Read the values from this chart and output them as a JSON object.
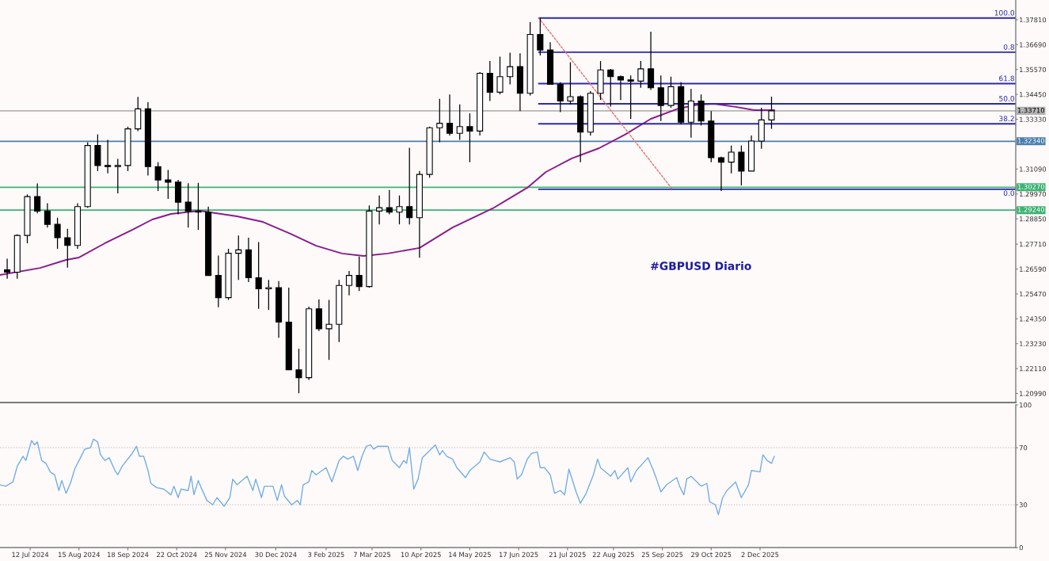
{
  "chart_data": [
    {
      "type": "candlestick",
      "x": [
        "2024-06-26",
        "2024-07-03",
        "2024-07-10",
        "2024-07-17",
        "2024-07-24",
        "2024-07-31",
        "2024-08-07",
        "2024-08-14",
        "2024-08-21",
        "2024-08-28",
        "2024-09-04",
        "2024-09-11",
        "2024-09-18",
        "2024-09-25",
        "2024-10-02",
        "2024-10-09",
        "2024-10-16",
        "2024-10-23",
        "2024-10-30",
        "2024-11-06",
        "2024-11-13",
        "2024-11-20",
        "2024-11-27",
        "2024-12-04",
        "2024-12-11",
        "2024-12-18",
        "2024-12-25",
        "2025-01-01",
        "2025-01-08",
        "2025-01-15",
        "2025-01-22",
        "2025-01-29",
        "2025-02-05",
        "2025-02-12",
        "2025-02-19",
        "2025-02-26",
        "2025-03-05",
        "2025-03-12",
        "2025-03-19",
        "2025-03-26",
        "2025-04-02",
        "2025-04-09",
        "2025-04-16",
        "2025-04-23",
        "2025-04-30",
        "2025-05-07",
        "2025-05-14",
        "2025-05-21",
        "2025-05-28",
        "2025-06-04",
        "2025-06-11",
        "2025-06-18",
        "2025-06-25",
        "2025-07-02",
        "2025-07-09",
        "2025-07-16",
        "2025-07-23",
        "2025-07-30",
        "2025-08-06",
        "2025-08-13",
        "2025-08-20",
        "2025-08-27",
        "2025-09-03",
        "2025-09-10",
        "2025-09-17",
        "2025-09-24",
        "2025-10-01",
        "2025-10-08",
        "2025-10-15",
        "2025-10-22",
        "2025-10-29",
        "2025-11-05",
        "2025-11-12",
        "2025-11-19",
        "2025-11-26",
        "2025-12-03",
        "2025-12-10"
      ],
      "ohlc": [
        [
          1.2655,
          1.2705,
          1.2615,
          1.2645
        ],
        [
          1.2645,
          1.2815,
          1.2615,
          1.281
        ],
        [
          1.281,
          1.2995,
          1.2775,
          1.2985
        ],
        [
          1.2985,
          1.3044,
          1.291,
          1.292
        ],
        [
          1.292,
          1.2955,
          1.2845,
          1.286
        ],
        [
          1.286,
          1.289,
          1.275,
          1.28
        ],
        [
          1.28,
          1.284,
          1.2665,
          1.2765
        ],
        [
          1.2765,
          1.2955,
          1.275,
          1.294
        ],
        [
          1.294,
          1.323,
          1.2935,
          1.3215
        ],
        [
          1.3215,
          1.3265,
          1.31,
          1.3125
        ],
        [
          1.3125,
          1.324,
          1.309,
          1.312
        ],
        [
          1.312,
          1.3155,
          1.3,
          1.3125
        ],
        [
          1.3125,
          1.33,
          1.31,
          1.329
        ],
        [
          1.329,
          1.3434,
          1.328,
          1.338
        ],
        [
          1.338,
          1.341,
          1.308,
          1.312
        ],
        [
          1.312,
          1.314,
          1.301,
          1.306
        ],
        [
          1.306,
          1.3105,
          1.2975,
          1.305
        ],
        [
          1.305,
          1.306,
          1.2905,
          1.296
        ],
        [
          1.296,
          1.3045,
          1.2845,
          1.292
        ],
        [
          1.292,
          1.3047,
          1.2835,
          1.2915
        ],
        [
          1.2915,
          1.294,
          1.263,
          1.263
        ],
        [
          1.263,
          1.272,
          1.2487,
          1.253
        ],
        [
          1.253,
          1.275,
          1.252,
          1.273
        ],
        [
          1.273,
          1.281,
          1.261,
          1.2745
        ],
        [
          1.2745,
          1.28,
          1.26,
          1.262
        ],
        [
          1.262,
          1.278,
          1.248,
          1.257
        ],
        [
          1.257,
          1.261,
          1.2475,
          1.2575
        ],
        [
          1.2575,
          1.2605,
          1.235,
          1.242
        ],
        [
          1.242,
          1.2575,
          1.2205,
          1.2205
        ],
        [
          1.2205,
          1.23,
          1.21,
          1.217
        ],
        [
          1.217,
          1.249,
          1.216,
          1.248
        ],
        [
          1.248,
          1.2523,
          1.238,
          1.239
        ],
        [
          1.239,
          1.252,
          1.225,
          1.241
        ],
        [
          1.241,
          1.261,
          1.233,
          1.2585
        ],
        [
          1.2585,
          1.265,
          1.254,
          1.263
        ],
        [
          1.263,
          1.2715,
          1.256,
          1.258
        ],
        [
          1.258,
          1.2945,
          1.2575,
          1.292
        ],
        [
          1.292,
          1.299,
          1.286,
          1.2935
        ],
        [
          1.2935,
          1.3015,
          1.2905,
          1.2915
        ],
        [
          1.2915,
          1.299,
          1.286,
          1.294
        ],
        [
          1.294,
          1.3205,
          1.286,
          1.289
        ],
        [
          1.289,
          1.31,
          1.271,
          1.3085
        ],
        [
          1.3085,
          1.33,
          1.307,
          1.3295
        ],
        [
          1.3295,
          1.3425,
          1.323,
          1.3315
        ],
        [
          1.3315,
          1.3445,
          1.326,
          1.327
        ],
        [
          1.327,
          1.34,
          1.324,
          1.33
        ],
        [
          1.33,
          1.336,
          1.314,
          1.328
        ],
        [
          1.328,
          1.3545,
          1.326,
          1.354
        ],
        [
          1.354,
          1.3595,
          1.3415,
          1.3455
        ],
        [
          1.3455,
          1.3615,
          1.3445,
          1.3525
        ],
        [
          1.3525,
          1.3633,
          1.349,
          1.357
        ],
        [
          1.357,
          1.363,
          1.337,
          1.345
        ],
        [
          1.345,
          1.377,
          1.344,
          1.3715
        ],
        [
          1.3715,
          1.3789,
          1.362,
          1.3645
        ],
        [
          1.3645,
          1.368,
          1.349,
          1.349
        ],
        [
          1.349,
          1.35,
          1.3365,
          1.3415
        ],
        [
          1.3415,
          1.359,
          1.34,
          1.3435
        ],
        [
          1.3435,
          1.344,
          1.314,
          1.3275
        ],
        [
          1.3275,
          1.346,
          1.326,
          1.345
        ],
        [
          1.345,
          1.3595,
          1.342,
          1.3555
        ],
        [
          1.3555,
          1.356,
          1.339,
          1.3525
        ],
        [
          1.3525,
          1.353,
          1.342,
          1.351
        ],
        [
          1.351,
          1.353,
          1.3335,
          1.3505
        ],
        [
          1.3505,
          1.3595,
          1.3475,
          1.356
        ],
        [
          1.356,
          1.3727,
          1.3465,
          1.3475
        ],
        [
          1.3475,
          1.353,
          1.3325,
          1.3395
        ],
        [
          1.3395,
          1.3525,
          1.3385,
          1.348
        ],
        [
          1.348,
          1.35,
          1.331,
          1.332
        ],
        [
          1.332,
          1.347,
          1.325,
          1.3415
        ],
        [
          1.3415,
          1.3445,
          1.3305,
          1.3325
        ],
        [
          1.3325,
          1.337,
          1.314,
          1.316
        ],
        [
          1.316,
          1.3165,
          1.301,
          1.314
        ],
        [
          1.314,
          1.3215,
          1.309,
          1.3185
        ],
        [
          1.3185,
          1.3215,
          1.3035,
          1.31
        ],
        [
          1.31,
          1.326,
          1.31,
          1.3235
        ],
        [
          1.3235,
          1.3385,
          1.32,
          1.333
        ],
        [
          1.333,
          1.3435,
          1.329,
          1.3371
        ]
      ],
      "series": [
        {
          "type": "line",
          "color": "#8b1a8b",
          "x": [
            "2024-06-21",
            "2024-07-19",
            "2024-08-06",
            "2024-08-15",
            "2024-09-02",
            "2024-09-21",
            "2024-10-05",
            "2024-10-18",
            "2024-11-07",
            "2024-12-03",
            "2024-12-21",
            "2025-01-09",
            "2025-01-27",
            "2025-02-14",
            "2025-03-01",
            "2025-03-18",
            "2025-04-09",
            "2025-05-02",
            "2025-05-30",
            "2025-06-23",
            "2025-07-06",
            "2025-07-24",
            "2025-08-12",
            "2025-08-30",
            "2025-09-17",
            "2025-10-06",
            "2025-10-20",
            "2025-10-31",
            "2025-11-15",
            "2025-11-28",
            "2025-12-12"
          ],
          "values": [
            1.2632,
            1.2664,
            1.27,
            1.2711,
            1.2775,
            1.2835,
            1.2882,
            1.2907,
            1.2921,
            1.2896,
            1.2871,
            1.2818,
            1.2764,
            1.2729,
            1.2718,
            1.2729,
            1.2754,
            1.2846,
            1.2932,
            1.3025,
            1.3096,
            1.3157,
            1.3203,
            1.3264,
            1.3335,
            1.3381,
            1.3399,
            1.3403,
            1.3389,
            1.3374,
            1.3374
          ]
        },
        {
          "type": "line",
          "name": "100.0",
          "color": "#2a2ab0",
          "x": [
            "2025-07-01",
            "2026-05-29"
          ],
          "values": [
            1.3789,
            1.3789
          ]
        },
        {
          "type": "line",
          "name": "0.8",
          "color": "#2a2ab0",
          "x": [
            "2025-07-01",
            "2026-05-29"
          ],
          "values": [
            1.3635,
            1.3635
          ]
        },
        {
          "type": "line",
          "name": "61.8",
          "color": "#2a2ab0",
          "x": [
            "2025-07-01",
            "2026-05-29"
          ],
          "values": [
            1.3494,
            1.3494
          ]
        },
        {
          "type": "line",
          "name": "50.0",
          "color": "#2a2ab0",
          "x": [
            "2025-07-01",
            "2026-05-29"
          ],
          "values": [
            1.3403,
            1.3403
          ]
        },
        {
          "type": "line",
          "name": "38.2",
          "color": "#2a2ab0",
          "x": [
            "2025-07-01",
            "2026-05-29"
          ],
          "values": [
            1.3313,
            1.3313
          ]
        },
        {
          "type": "line",
          "name": "0.0",
          "color": "#2a2ab0",
          "x": [
            "2025-07-01",
            "2026-05-29"
          ],
          "values": [
            1.3018,
            1.3018
          ]
        },
        {
          "type": "line",
          "color": "#e87a7a",
          "line_style": "dotted",
          "x": [
            "2025-07-01",
            "2025-10-02"
          ],
          "values": [
            1.3789,
            1.3018
          ]
        }
      ],
      "xlim": [
        "2024-06-21",
        "2026-05-29"
      ],
      "ylim": [
        1.2058,
        1.387
      ],
      "yticks": [
        {
          "value": 1.3781,
          "label": "1.37810"
        },
        {
          "value": 1.3669,
          "label": "1.36690"
        },
        {
          "value": 1.3557,
          "label": "1.35570"
        },
        {
          "value": 1.3445,
          "label": "1.34450"
        },
        {
          "value": 1.3333,
          "label": "1.33330"
        },
        {
          "value": 1.3221,
          "label": null
        },
        {
          "value": 1.3109,
          "label": "1.31090"
        },
        {
          "value": 1.2997,
          "label": "1.29970"
        },
        {
          "value": 1.2885,
          "label": "1.28850"
        },
        {
          "value": 1.2771,
          "label": "1.27710"
        },
        {
          "value": 1.2659,
          "label": "1.26590"
        },
        {
          "value": 1.2547,
          "label": "1.25470"
        },
        {
          "value": 1.2435,
          "label": "1.24350"
        },
        {
          "value": 1.2323,
          "label": "1.23230"
        },
        {
          "value": 1.2211,
          "label": "1.22110"
        },
        {
          "value": 1.2099,
          "label": "1.20990"
        }
      ],
      "tick_labels": "y",
      "ref_lines": [
        {
          "axis": "y",
          "value": 1.3371,
          "label": "1.33710",
          "color": "#b4b4b4"
        },
        {
          "axis": "y",
          "value": 1.3234,
          "label": "1.32340",
          "color": "#4a7fb0"
        },
        {
          "axis": "y",
          "value": 1.3027,
          "label": "1.30270",
          "color": "#3cb371"
        },
        {
          "axis": "y",
          "value": 1.2924,
          "label": "1.29240",
          "color": "#3cb371"
        }
      ],
      "annotations": [
        "#GBPUSD Diario"
      ]
    },
    {
      "type": "line",
      "color": "#72aee6",
      "x": [
        "2024-06-21",
        "2024-06-25",
        "2024-06-30",
        "2024-07-03",
        "2024-07-07",
        "2024-07-09",
        "2024-07-13",
        "2024-07-15",
        "2024-07-17",
        "2024-07-20",
        "2024-07-23",
        "2024-07-26",
        "2024-07-29",
        "2024-08-01",
        "2024-08-03",
        "2024-08-06",
        "2024-08-09",
        "2024-08-12",
        "2024-08-16",
        "2024-08-19",
        "2024-08-23",
        "2024-08-25",
        "2024-08-28",
        "2024-08-30",
        "2024-09-02",
        "2024-09-05",
        "2024-09-09",
        "2024-09-11",
        "2024-09-14",
        "2024-09-21",
        "2024-09-24",
        "2024-09-26",
        "2024-09-29",
        "2024-10-02",
        "2024-10-04",
        "2024-10-08",
        "2024-10-13",
        "2024-10-18",
        "2024-10-20",
        "2024-10-23",
        "2024-10-25",
        "2024-10-30",
        "2024-11-01",
        "2024-11-03",
        "2024-11-06",
        "2024-11-08",
        "2024-11-12",
        "2024-11-16",
        "2024-11-19",
        "2024-11-24",
        "2024-11-28",
        "2024-11-30",
        "2024-12-03",
        "2024-12-10",
        "2024-12-14",
        "2024-12-16",
        "2024-12-20",
        "2024-12-22",
        "2024-12-28",
        "2024-12-31",
        "2025-01-03",
        "2025-01-05",
        "2025-01-10",
        "2025-01-14",
        "2025-01-16",
        "2025-01-18",
        "2025-01-22",
        "2025-01-24",
        "2025-01-27",
        "2025-02-03",
        "2025-02-07",
        "2025-02-12",
        "2025-02-15",
        "2025-02-18",
        "2025-02-22",
        "2025-02-25",
        "2025-02-28",
        "2025-03-03",
        "2025-03-06",
        "2025-03-08",
        "2025-03-11",
        "2025-03-18",
        "2025-03-21",
        "2025-03-26",
        "2025-03-29",
        "2025-03-31",
        "2025-04-02",
        "2025-04-05",
        "2025-04-08",
        "2025-04-11",
        "2025-04-15",
        "2025-04-20",
        "2025-04-23",
        "2025-04-25",
        "2025-04-28",
        "2025-05-02",
        "2025-05-05",
        "2025-05-11",
        "2025-05-14",
        "2025-05-21",
        "2025-05-24",
        "2025-05-28",
        "2025-06-04",
        "2025-06-11",
        "2025-06-14",
        "2025-06-16",
        "2025-06-19",
        "2025-06-23",
        "2025-06-26",
        "2025-06-30",
        "2025-07-02",
        "2025-07-05",
        "2025-07-09",
        "2025-07-12",
        "2025-07-16",
        "2025-07-19",
        "2025-07-22",
        "2025-07-27",
        "2025-07-30",
        "2025-08-03",
        "2025-08-08",
        "2025-08-11",
        "2025-08-13",
        "2025-08-20",
        "2025-08-23",
        "2025-08-25",
        "2025-09-01",
        "2025-09-03",
        "2025-09-07",
        "2025-09-15",
        "2025-09-18",
        "2025-09-21",
        "2025-09-24",
        "2025-09-28",
        "2025-10-05",
        "2025-10-07",
        "2025-10-10",
        "2025-10-12",
        "2025-10-15",
        "2025-10-22",
        "2025-10-26",
        "2025-10-28",
        "2025-11-01",
        "2025-11-03",
        "2025-11-06",
        "2025-11-09",
        "2025-11-15",
        "2025-11-19",
        "2025-11-24",
        "2025-11-26",
        "2025-12-02",
        "2025-12-04",
        "2025-12-07",
        "2025-12-10",
        "2025-12-12"
      ],
      "values": [
        44,
        43,
        46,
        57,
        64,
        61,
        75,
        72,
        74,
        61,
        59,
        53,
        51,
        40,
        47,
        38,
        45,
        55,
        63,
        69,
        70,
        76,
        74,
        65,
        61,
        63,
        54,
        51,
        57,
        66,
        71,
        64,
        64,
        54,
        45,
        42,
        41,
        37,
        43,
        35,
        41,
        40,
        50,
        37,
        47,
        42,
        33,
        30,
        35,
        29,
        35,
        48,
        44,
        50,
        40,
        48,
        35,
        43,
        43,
        33,
        44,
        36,
        30,
        33,
        30,
        44,
        46,
        54,
        51,
        56,
        46,
        61,
        64,
        62,
        64,
        54,
        64,
        71,
        72,
        69,
        71,
        71,
        61,
        56,
        61,
        59,
        70,
        41,
        48,
        63,
        67,
        72,
        65,
        68,
        64,
        62,
        56,
        49,
        54,
        60,
        67,
        62,
        60,
        63,
        60,
        48,
        51,
        62,
        66,
        67,
        56,
        56,
        51,
        38,
        40,
        37,
        55,
        39,
        31,
        38,
        51,
        62,
        56,
        50,
        54,
        48,
        56,
        46,
        54,
        63,
        56,
        48,
        39,
        44,
        49,
        43,
        37,
        48,
        50,
        43,
        45,
        32,
        30,
        23,
        35,
        40,
        46,
        35,
        44,
        54,
        53,
        65,
        61,
        59,
        64
      ],
      "xlim": [
        "2024-06-21",
        "2026-05-29"
      ],
      "ylim": [
        0,
        100
      ],
      "yticks": [
        0,
        30,
        70,
        100
      ],
      "xticks": [
        {
          "value": "2024-07-12",
          "label": "12 Jul 2024"
        },
        {
          "value": "2024-08-15",
          "label": "15 Aug 2024"
        },
        {
          "value": "2024-09-18",
          "label": "18 Sep 2024"
        },
        {
          "value": "2024-10-22",
          "label": "22 Oct 2024"
        },
        {
          "value": "2024-11-25",
          "label": "25 Nov 2024"
        },
        {
          "value": "2024-12-30",
          "label": "30 Dec 2024"
        },
        {
          "value": "2025-02-03",
          "label": "3 Feb 2025"
        },
        {
          "value": "2025-03-07",
          "label": "7 Mar 2025"
        },
        {
          "value": "2025-04-10",
          "label": "10 Apr 2025"
        },
        {
          "value": "2025-05-14",
          "label": "14 May 2025"
        },
        {
          "value": "2025-06-17",
          "label": "17 Jun 2025"
        },
        {
          "value": "2025-07-21",
          "label": "21 Jul 2025"
        },
        {
          "value": "2025-08-22",
          "label": "22 Aug 2025"
        },
        {
          "value": "2025-09-25",
          "label": "25 Sep 2025"
        },
        {
          "value": "2025-10-29",
          "label": "29 Oct 2025"
        },
        {
          "value": "2025-12-02",
          "label": "2 Dec 2025"
        }
      ],
      "ref_lines": [
        {
          "axis": "y",
          "value": 70,
          "color": "#c8c8c8",
          "line_style": "dotted"
        },
        {
          "axis": "y",
          "value": 30,
          "color": "#c8c8c8",
          "line_style": "dotted"
        }
      ]
    }
  ]
}
